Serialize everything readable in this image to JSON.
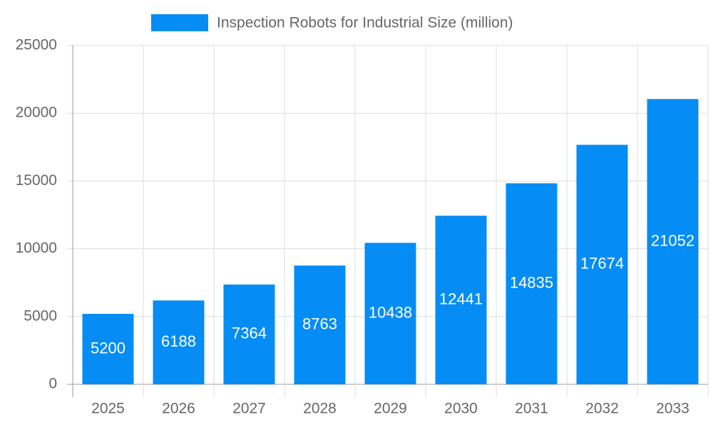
{
  "chart_data": {
    "type": "bar",
    "categories": [
      "2025",
      "2026",
      "2027",
      "2028",
      "2029",
      "2030",
      "2031",
      "2032",
      "2033"
    ],
    "series": [
      {
        "name": "Inspection Robots for Industrial Size (million)",
        "color": "#058df5",
        "values": [
          5200,
          6188,
          7364,
          8763,
          10438,
          12441,
          14835,
          17674,
          21052
        ]
      }
    ],
    "ylim": [
      0,
      25000
    ],
    "yticks": [
      0,
      5000,
      10000,
      15000,
      20000,
      25000
    ],
    "grid": true,
    "legend": "top"
  }
}
